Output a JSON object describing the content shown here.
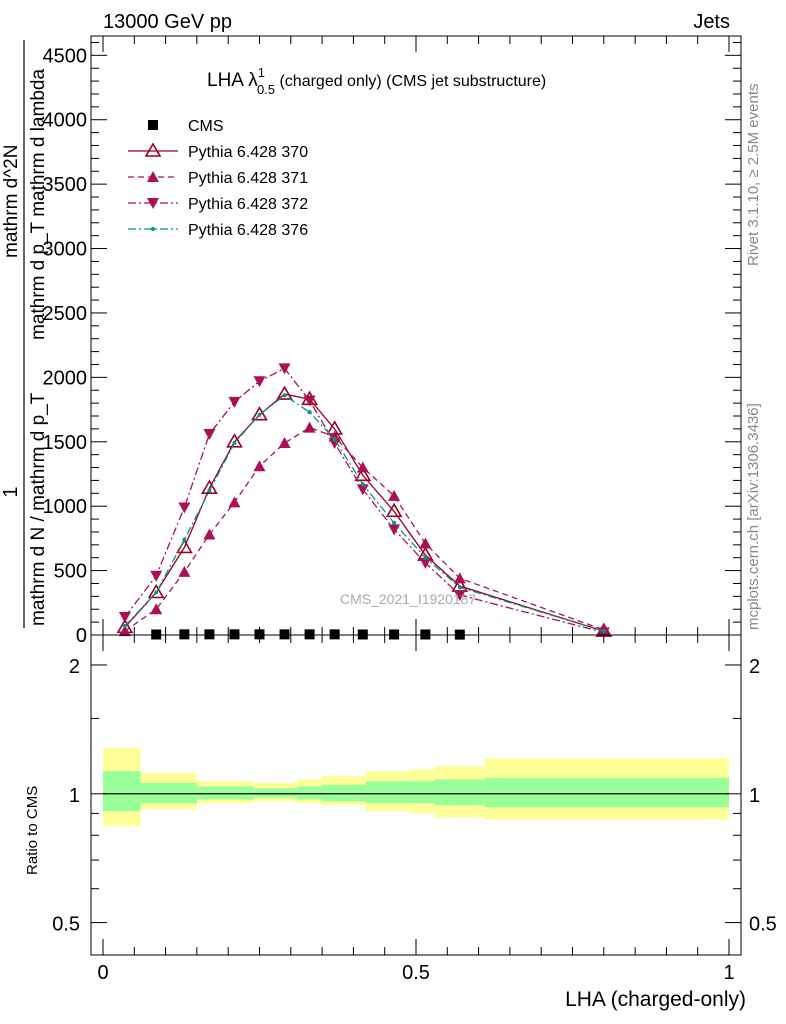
{
  "header": {
    "energy": "13000 GeV pp",
    "category": "Jets"
  },
  "plot_title": {
    "main": "LHA λ",
    "sup": "1",
    "sub": "0.5",
    "rest": " (charged only) (CMS jet substructure)"
  },
  "side_labels": {
    "rivet": "Rivet 3.1.10, ≥ 2.5M events",
    "mcplots": "mcplots.cern.ch [arXiv:1306.3436]"
  },
  "watermark": "CMS_2021_I1920187",
  "ylabel_main": {
    "numerator": "1",
    "denominator": "mathrm d N / mathrm d p_T",
    "extra_a": "mathrm d^2N",
    "extra_b": "mathrm d p_T mathrm d lambda"
  },
  "ratio_ylabel": "Ratio to CMS",
  "xlabel": "LHA (charged-only)",
  "colors": {
    "pythia": "#990022",
    "pythia_b": "#aa1155",
    "pythia376": "#009988",
    "band_inner": "#99ff99",
    "band_outer": "#ffff99"
  },
  "chart_data": [
    {
      "type": "line",
      "xlim": [
        0,
        1
      ],
      "ylim": [
        0,
        4650
      ],
      "yticks": [
        0,
        500,
        1000,
        1500,
        2000,
        2500,
        3000,
        3500,
        4000,
        4500
      ],
      "ytick_labels": [
        "0",
        "500",
        "1000",
        "1500",
        "2000",
        "2500",
        "3000",
        "3500",
        "4000",
        "4500"
      ],
      "x": [
        0.035,
        0.085,
        0.13,
        0.17,
        0.21,
        0.25,
        0.29,
        0.33,
        0.37,
        0.415,
        0.465,
        0.515,
        0.57,
        0.8
      ],
      "series": [
        {
          "name": "CMS",
          "marker": "square",
          "values": [
            null,
            4,
            5,
            5,
            5,
            5,
            5,
            5,
            5,
            4,
            4,
            4,
            3,
            null
          ]
        },
        {
          "name": "Pythia 6.428 370",
          "marker": "triangle-up-open",
          "dash": "solid",
          "values": [
            60,
            330,
            680,
            1140,
            1500,
            1710,
            1870,
            1830,
            1600,
            1240,
            960,
            620,
            380,
            30
          ]
        },
        {
          "name": "Pythia 6.428 371",
          "marker": "triangle-up",
          "dash": "dashed",
          "values": [
            30,
            200,
            490,
            780,
            1030,
            1310,
            1490,
            1610,
            1540,
            1300,
            1080,
            710,
            440,
            40
          ]
        },
        {
          "name": "Pythia 6.428 372",
          "marker": "triangle-down",
          "dash": "dashdot",
          "values": [
            140,
            460,
            990,
            1560,
            1810,
            1970,
            2070,
            1820,
            1490,
            1130,
            820,
            560,
            310,
            20
          ]
        },
        {
          "name": "Pythia 6.428 376",
          "marker": "dot",
          "dash": "dashdot",
          "values": [
            70,
            330,
            740,
            1120,
            1490,
            1710,
            1860,
            1730,
            1520,
            1170,
            870,
            600,
            370,
            30
          ]
        }
      ]
    },
    {
      "type": "area",
      "ylabel": "Ratio to CMS",
      "ylim": [
        0.42,
        2.35
      ],
      "log_scale": true,
      "yticks": [
        0.5,
        1,
        2
      ],
      "ytick_labels": [
        "0.5",
        "1",
        "2"
      ],
      "xticks": [
        0,
        0.5,
        1
      ],
      "xtick_labels": [
        "0",
        "0.5",
        "1"
      ],
      "bins": [
        0,
        0.06,
        0.15,
        0.24,
        0.31,
        0.35,
        0.42,
        0.49,
        0.53,
        0.61,
        1.0
      ],
      "inner": [
        [
          0.91,
          1.13
        ],
        [
          0.95,
          1.06
        ],
        [
          0.97,
          1.04
        ],
        [
          0.98,
          1.03
        ],
        [
          0.97,
          1.04
        ],
        [
          0.96,
          1.05
        ],
        [
          0.95,
          1.07
        ],
        [
          0.95,
          1.07
        ],
        [
          0.94,
          1.08
        ],
        [
          0.93,
          1.09
        ]
      ],
      "outer": [
        [
          0.84,
          1.28
        ],
        [
          0.92,
          1.12
        ],
        [
          0.95,
          1.07
        ],
        [
          0.96,
          1.06
        ],
        [
          0.95,
          1.08
        ],
        [
          0.94,
          1.1
        ],
        [
          0.91,
          1.13
        ],
        [
          0.9,
          1.14
        ],
        [
          0.88,
          1.16
        ],
        [
          0.87,
          1.21
        ]
      ],
      "reference": 1
    }
  ]
}
